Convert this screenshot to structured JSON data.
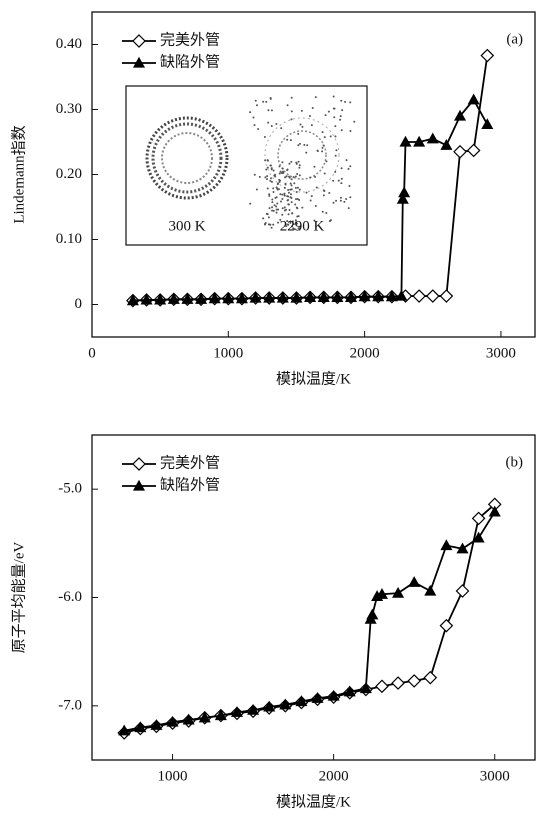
{
  "chart_data": [
    {
      "type": "line",
      "annotation": "(a)",
      "x_label": "模拟温度/K",
      "y_label": "Lindemann指数",
      "xlim": [
        0,
        3250
      ],
      "xticks": [
        0,
        1000,
        2000,
        3000
      ],
      "ylim": [
        -0.05,
        0.45
      ],
      "yticks": [
        0,
        {
          "value": 0.1,
          "label": "0.10"
        },
        {
          "value": 0.2,
          "label": "0.20"
        },
        {
          "value": 0.3,
          "label": "0.30"
        },
        {
          "value": 0.4,
          "label": "0.40"
        }
      ],
      "legend": "upper left",
      "inset_labels": [
        "300 K",
        "2290 K"
      ],
      "series": [
        {
          "name": "完美外管",
          "color": "#000000",
          "marker": "diamond",
          "x": [
            300,
            400,
            500,
            600,
            700,
            800,
            900,
            1000,
            1100,
            1200,
            1300,
            1400,
            1500,
            1600,
            1700,
            1800,
            1900,
            2000,
            2100,
            2200,
            2300,
            2400,
            2500,
            2600,
            2700,
            2800,
            2900
          ],
          "values": [
            0.006,
            0.007,
            0.007,
            0.008,
            0.008,
            0.008,
            0.009,
            0.009,
            0.009,
            0.01,
            0.01,
            0.01,
            0.01,
            0.011,
            0.011,
            0.011,
            0.011,
            0.012,
            0.012,
            0.012,
            0.013,
            0.013,
            0.013,
            0.013,
            0.235,
            0.237,
            0.383
          ]
        },
        {
          "name": "缺陷外管",
          "color": "#000000",
          "marker": "triangle",
          "x": [
            300,
            400,
            500,
            600,
            700,
            800,
            900,
            1000,
            1100,
            1200,
            1300,
            1400,
            1500,
            1600,
            1700,
            1800,
            1900,
            2000,
            2100,
            2200,
            2270,
            2280,
            2290,
            2300,
            2400,
            2500,
            2600,
            2700,
            2800,
            2900
          ],
          "values": [
            0.006,
            0.007,
            0.007,
            0.008,
            0.008,
            0.008,
            0.009,
            0.009,
            0.009,
            0.01,
            0.01,
            0.01,
            0.01,
            0.011,
            0.011,
            0.011,
            0.011,
            0.012,
            0.012,
            0.012,
            0.013,
            0.162,
            0.172,
            0.25,
            0.25,
            0.255,
            0.245,
            0.29,
            0.315,
            0.277
          ]
        }
      ]
    },
    {
      "type": "line",
      "annotation": "(b)",
      "x_label": "模拟温度/K",
      "y_label": "原子平均能量/eV",
      "xlim": [
        500,
        3250
      ],
      "xticks": [
        1000,
        2000,
        3000
      ],
      "ylim": [
        -7.5,
        -4.5
      ],
      "yticks": [
        {
          "value": -7,
          "label": "-7.0"
        },
        {
          "value": -6,
          "label": "-6.0"
        },
        {
          "value": -5,
          "label": "-5.0"
        }
      ],
      "legend": "upper left",
      "series": [
        {
          "name": "完美外管",
          "color": "#000000",
          "marker": "diamond",
          "x": [
            700,
            800,
            900,
            1000,
            1100,
            1200,
            1300,
            1400,
            1500,
            1600,
            1700,
            1800,
            1900,
            2000,
            2100,
            2200,
            2300,
            2400,
            2500,
            2600,
            2700,
            2800,
            2900,
            3000
          ],
          "values": [
            -7.25,
            -7.21,
            -7.19,
            -7.16,
            -7.14,
            -7.11,
            -7.09,
            -7.07,
            -7.05,
            -7.02,
            -7.0,
            -6.97,
            -6.94,
            -6.92,
            -6.88,
            -6.85,
            -6.82,
            -6.79,
            -6.77,
            -6.74,
            -6.26,
            -5.94,
            -5.27,
            -5.14
          ]
        },
        {
          "name": "缺陷外管",
          "color": "#000000",
          "marker": "triangle",
          "x": [
            700,
            800,
            900,
            1000,
            1100,
            1200,
            1300,
            1400,
            1500,
            1600,
            1700,
            1800,
            1900,
            2000,
            2100,
            2200,
            2230,
            2240,
            2270,
            2300,
            2400,
            2500,
            2600,
            2700,
            2800,
            2900,
            3000
          ],
          "values": [
            -7.23,
            -7.2,
            -7.18,
            -7.15,
            -7.13,
            -7.11,
            -7.09,
            -7.06,
            -7.04,
            -7.01,
            -6.99,
            -6.96,
            -6.93,
            -6.91,
            -6.87,
            -6.84,
            -6.2,
            -6.16,
            -5.99,
            -5.97,
            -5.96,
            -5.86,
            -5.94,
            -5.52,
            -5.55,
            -5.45,
            -5.21
          ]
        }
      ]
    }
  ]
}
